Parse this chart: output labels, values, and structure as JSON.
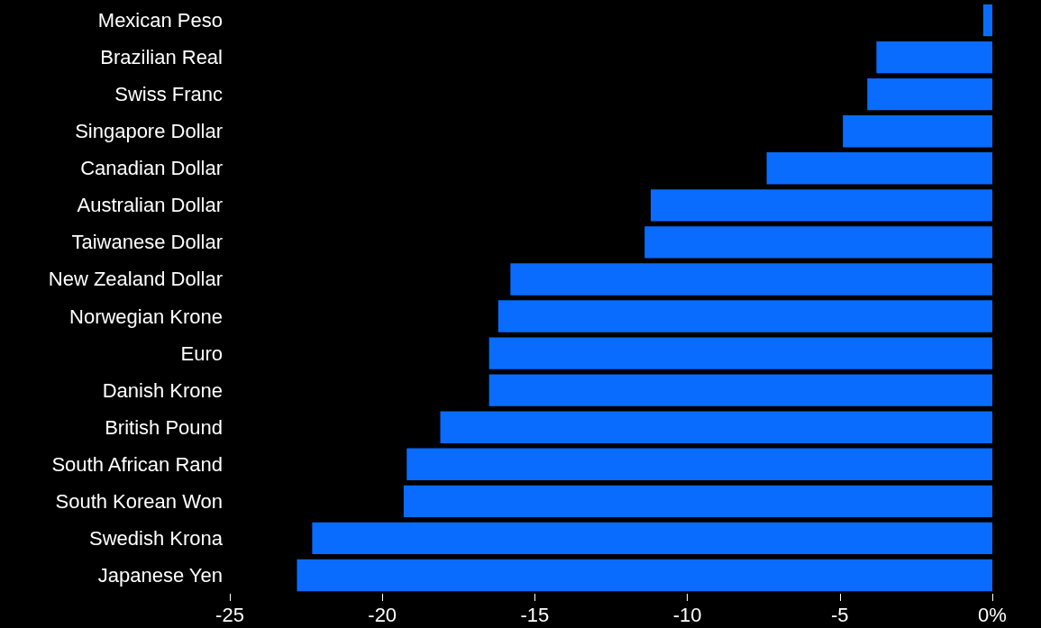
{
  "chart_data": {
    "type": "bar",
    "orientation": "horizontal",
    "categories": [
      "Mexican Peso",
      "Brazilian Real",
      "Swiss Franc",
      "Singapore Dollar",
      "Canadian Dollar",
      "Australian Dollar",
      "Taiwanese Dollar",
      "New Zealand Dollar",
      "Norwegian Krone",
      "Euro",
      "Danish Krone",
      "British Pound",
      "South African Rand",
      "South Korean Won",
      "Swedish Krona",
      "Japanese Yen"
    ],
    "values": [
      -0.3,
      -3.8,
      -4.1,
      -4.9,
      -7.4,
      -11.2,
      -11.4,
      -15.8,
      -16.2,
      -16.5,
      -16.5,
      -18.1,
      -19.2,
      -19.3,
      -22.3,
      -22.8
    ],
    "color": "#0a6cff",
    "xlim": [
      -25,
      0
    ],
    "xticks": [
      -25,
      -20,
      -15,
      -10,
      -5,
      {
        "value": 0,
        "label": "0%"
      }
    ],
    "grid": false
  }
}
